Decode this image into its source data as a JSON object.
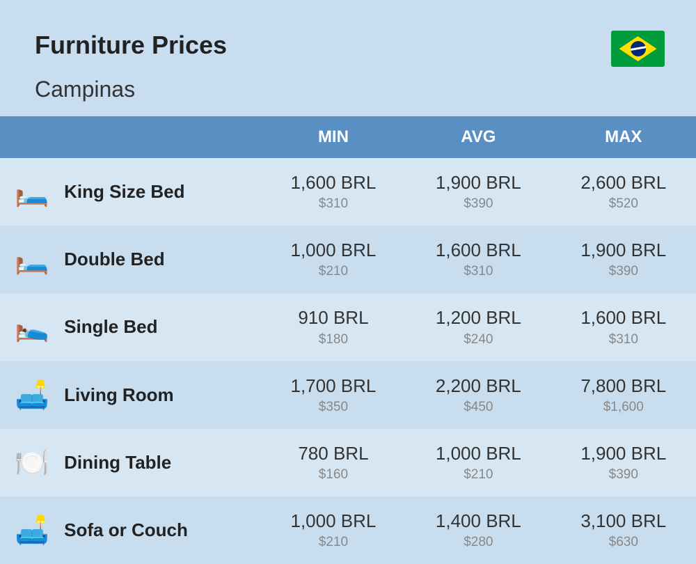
{
  "header": {
    "title": "Furniture Prices",
    "subtitle": "Campinas"
  },
  "table": {
    "columns": {
      "min": "MIN",
      "avg": "AVG",
      "max": "MAX"
    },
    "rows": [
      {
        "icon": "🛏️",
        "name": "King Size Bed",
        "min_brl": "1,600 BRL",
        "min_usd": "$310",
        "avg_brl": "1,900 BRL",
        "avg_usd": "$390",
        "max_brl": "2,600 BRL",
        "max_usd": "$520"
      },
      {
        "icon": "🛏️",
        "name": "Double Bed",
        "min_brl": "1,000 BRL",
        "min_usd": "$210",
        "avg_brl": "1,600 BRL",
        "avg_usd": "$310",
        "max_brl": "1,900 BRL",
        "max_usd": "$390"
      },
      {
        "icon": "🛌",
        "name": "Single Bed",
        "min_brl": "910 BRL",
        "min_usd": "$180",
        "avg_brl": "1,200 BRL",
        "avg_usd": "$240",
        "max_brl": "1,600 BRL",
        "max_usd": "$310"
      },
      {
        "icon": "🛋️",
        "name": "Living Room",
        "min_brl": "1,700 BRL",
        "min_usd": "$350",
        "avg_brl": "2,200 BRL",
        "avg_usd": "$450",
        "max_brl": "7,800 BRL",
        "max_usd": "$1,600"
      },
      {
        "icon": "🍽️",
        "name": "Dining Table",
        "min_brl": "780 BRL",
        "min_usd": "$160",
        "avg_brl": "1,000 BRL",
        "avg_usd": "$210",
        "max_brl": "1,900 BRL",
        "max_usd": "$390"
      },
      {
        "icon": "🛋️",
        "name": "Sofa or Couch",
        "min_brl": "1,000 BRL",
        "min_usd": "$210",
        "avg_brl": "1,400 BRL",
        "avg_usd": "$280",
        "max_brl": "3,100 BRL",
        "max_usd": "$630"
      }
    ]
  },
  "colors": {
    "page_bg": "#c8def0",
    "header_row_bg": "#5a8fc4",
    "header_row_text": "#ffffff",
    "row_odd_bg": "#d6e6f2",
    "row_even_bg": "#c8deef",
    "primary_text": "#333333",
    "secondary_text": "#888888",
    "title_text": "#222222"
  },
  "typography": {
    "title_fontsize": 36,
    "subtitle_fontsize": 32,
    "column_header_fontsize": 24,
    "row_name_fontsize": 26,
    "price_primary_fontsize": 26,
    "price_secondary_fontsize": 19
  }
}
